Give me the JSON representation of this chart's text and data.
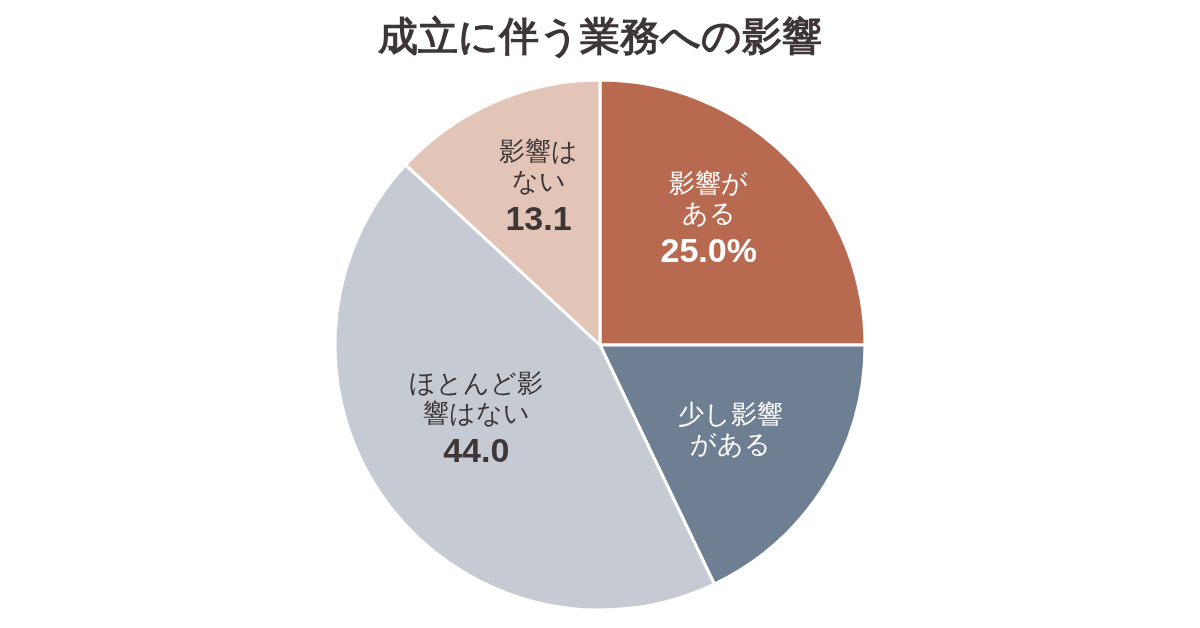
{
  "chart_data": {
    "type": "pie",
    "title": "成立に伴う業務への影響",
    "categories": [
      "影響がある",
      "少し影響がある",
      "ほとんど影響はない",
      "影響はない"
    ],
    "values": [
      25.0,
      17.9,
      44.0,
      13.1
    ],
    "value_labels": [
      "25.0%",
      null,
      "44.0",
      "13.1"
    ],
    "colors": [
      "#b86a51",
      "#6f7f93",
      "#c5cad3",
      "#e2c5b7"
    ]
  }
}
